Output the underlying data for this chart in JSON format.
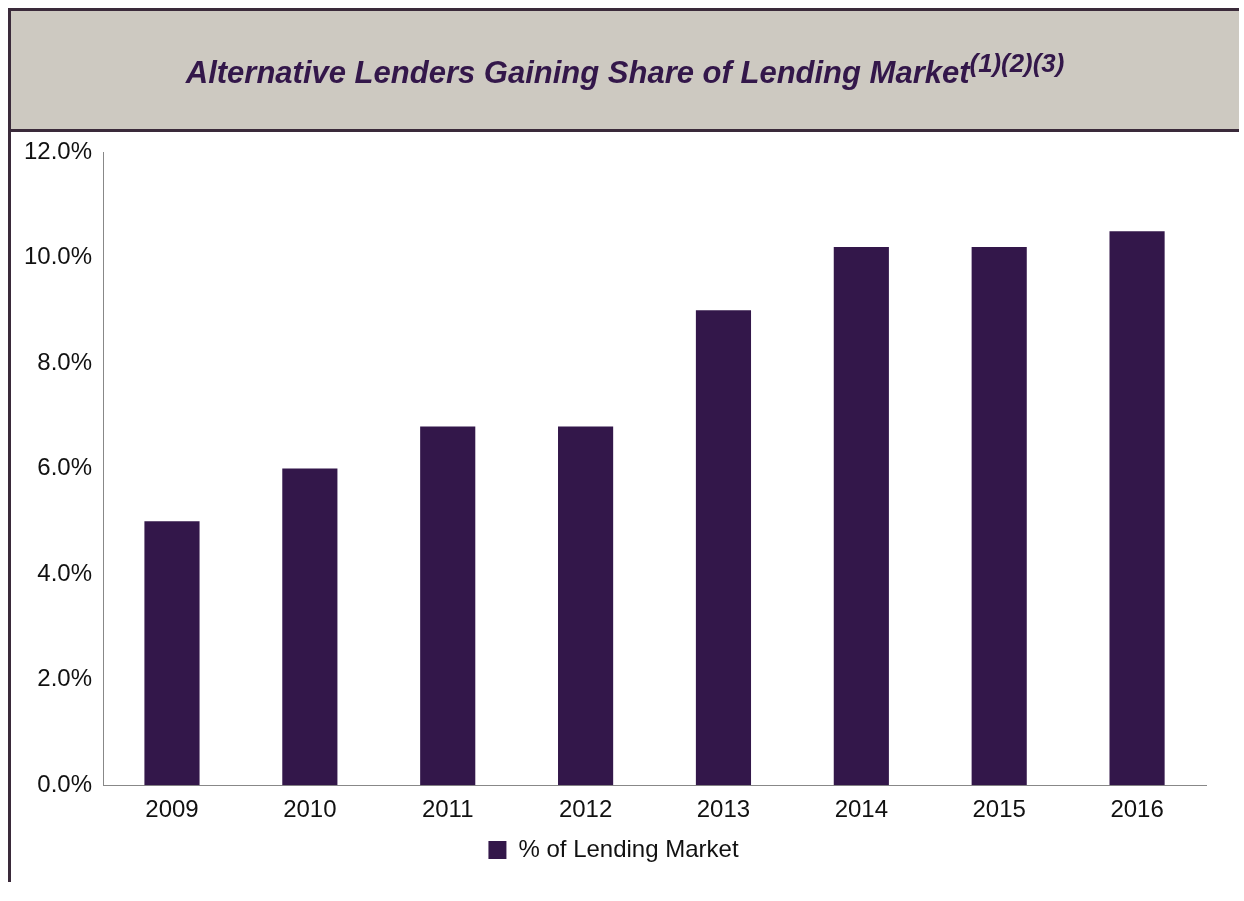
{
  "chart_data": {
    "type": "bar",
    "title": "Alternative Lenders Gaining Share of Lending Market$^{(1)(2)(3)}$",
    "categories": [
      "2009",
      "2010",
      "2011",
      "2012",
      "2013",
      "2014",
      "2015",
      "2016"
    ],
    "series": [
      {
        "name": "% of Lending Market",
        "color": "#33174a",
        "values": [
          5.0,
          6.0,
          6.8,
          6.8,
          9.0,
          10.2,
          10.2,
          10.5
        ]
      }
    ],
    "ylim": [
      0,
      12
    ],
    "yticks": [
      {
        "value": 0,
        "label": "0.0%"
      },
      {
        "value": 2,
        "label": "2.0%"
      },
      {
        "value": 4,
        "label": "4.0%"
      },
      {
        "value": 6,
        "label": "6.0%"
      },
      {
        "value": 8,
        "label": "8.0%"
      },
      {
        "value": 10,
        "label": "10.0%"
      },
      {
        "value": 12,
        "label": "12.0%"
      }
    ],
    "grid": false,
    "legend": "bottom"
  }
}
